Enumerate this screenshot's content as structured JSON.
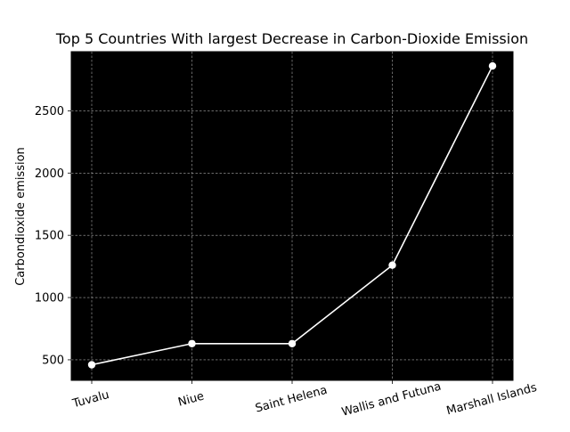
{
  "chart_data": {
    "type": "line",
    "title": "Top 5 Countries With largest Decrease in Carbon-Dioxide Emission",
    "xlabel": "",
    "ylabel": "Carbondioxide emission",
    "categories": [
      "Tuvalu",
      "Niue",
      "Saint Helena",
      "Wallis and Futuna",
      "Marshall Islands"
    ],
    "series": [
      {
        "values": [
          460,
          630,
          630,
          1260,
          2860
        ]
      }
    ],
    "ylim": [
      335,
      2975
    ],
    "yticks": [
      500,
      1000,
      1500,
      2000,
      2500
    ],
    "grid": true,
    "colors": {
      "plot_background": "#000000",
      "line": "#ffffff",
      "marker": "#ffffff",
      "grid": "#aaaaaa"
    }
  }
}
